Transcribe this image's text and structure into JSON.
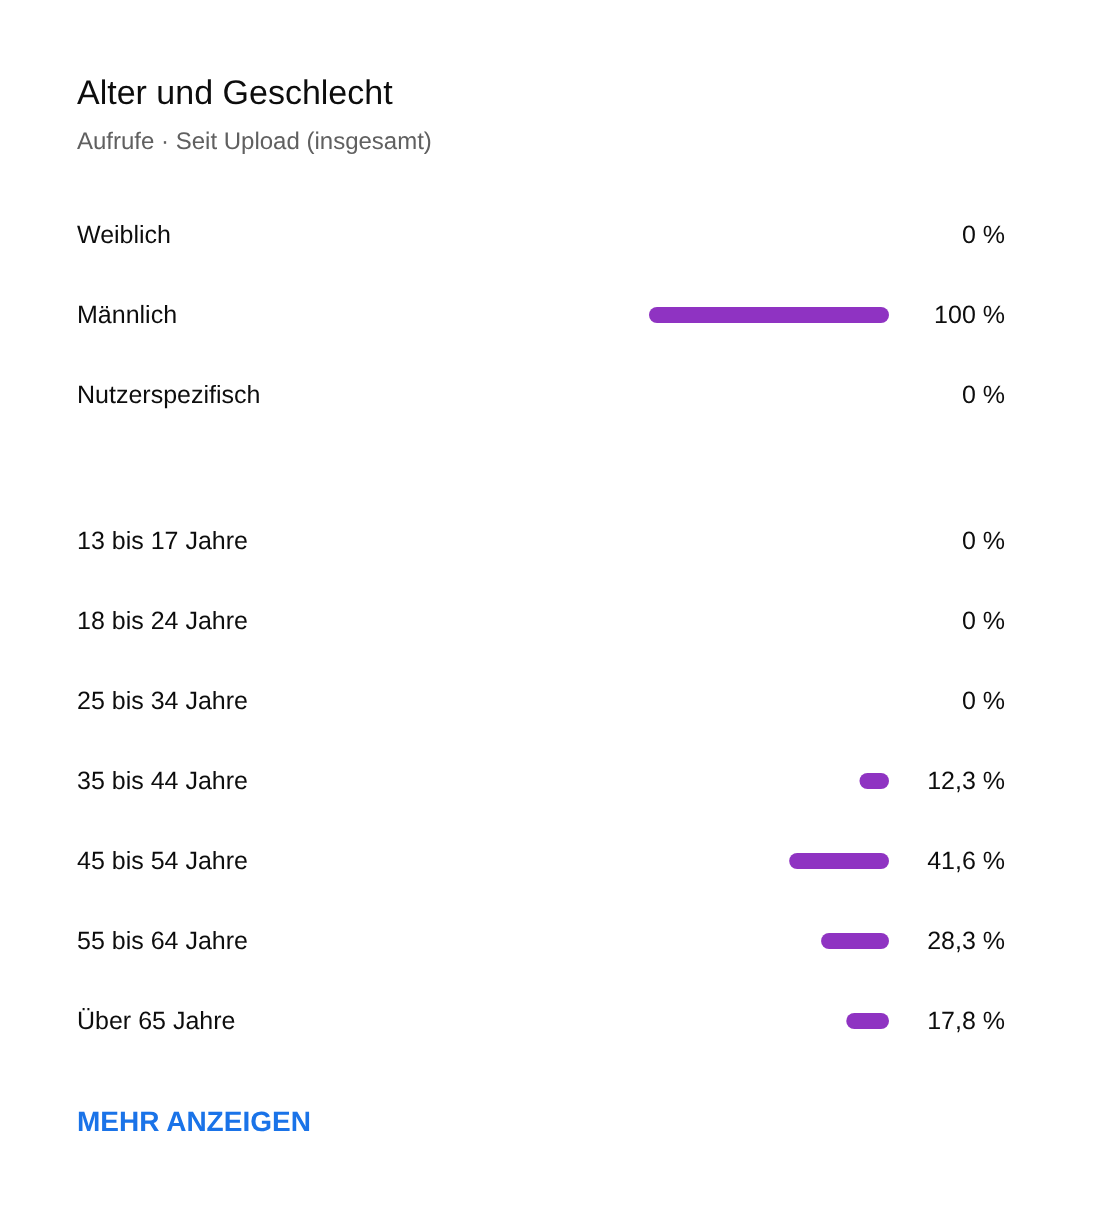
{
  "chart_data": [
    {
      "type": "bar",
      "orientation": "horizontal",
      "title": "Alter und Geschlecht",
      "subtitle": "Aufrufe · Seit Upload (insgesamt)",
      "categories": [
        "Weiblich",
        "Männlich",
        "Nutzerspezifisch"
      ],
      "values": [
        0,
        100,
        0
      ],
      "value_labels": [
        "0 %",
        "100 %",
        "0 %"
      ],
      "color": "#8f33c2"
    },
    {
      "type": "bar",
      "orientation": "horizontal",
      "categories": [
        "13 bis 17 Jahre",
        "18 bis 24 Jahre",
        "25 bis 34 Jahre",
        "35 bis 44 Jahre",
        "45 bis 54 Jahre",
        "55 bis 64 Jahre",
        "Über 65 Jahre"
      ],
      "values": [
        0,
        0,
        0,
        12.3,
        41.6,
        28.3,
        17.8
      ],
      "value_labels": [
        "0 %",
        "0 %",
        "0 %",
        "12,3 %",
        "41,6 %",
        "28,3 %",
        "17,8 %"
      ],
      "color": "#8f33c2",
      "annotations": [
        "MEHR ANZEIGEN"
      ]
    }
  ]
}
